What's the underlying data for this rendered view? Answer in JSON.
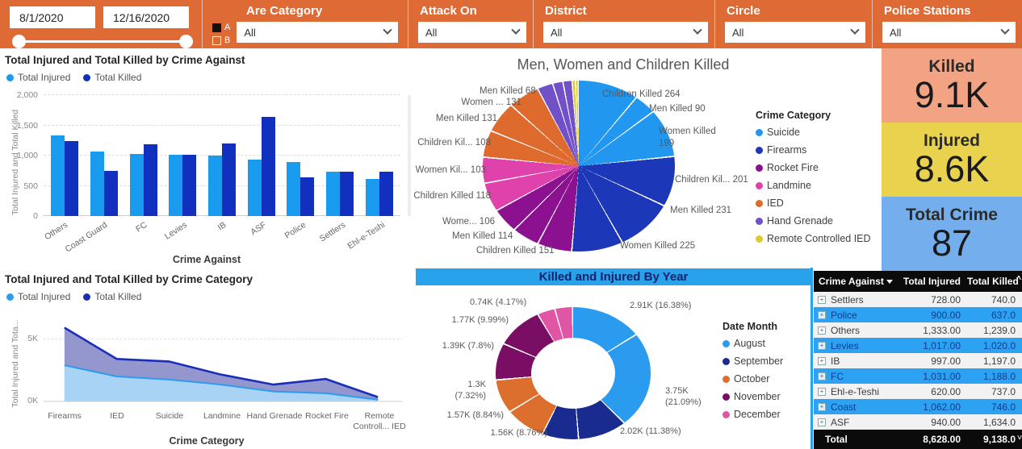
{
  "topbar": {
    "date_from": "8/1/2020",
    "date_to": "12/16/2020",
    "filters": [
      {
        "id": "are-category",
        "label": "Are Category",
        "value": "All",
        "checkboxes": [
          {
            "label": "A",
            "checked": true
          },
          {
            "label": "B",
            "checked": false
          }
        ]
      },
      {
        "id": "attack-on",
        "label": "Attack On",
        "value": "All"
      },
      {
        "id": "district",
        "label": "District",
        "value": "All"
      },
      {
        "id": "circle",
        "label": "Circle",
        "value": "All"
      },
      {
        "id": "police-stations",
        "label": "Police Stations",
        "value": "All"
      }
    ]
  },
  "kpi": {
    "killed": {
      "label": "Killed",
      "value": "9.1K",
      "bg": "#F2A383"
    },
    "injured": {
      "label": "Injured",
      "value": "8.6K",
      "bg": "#E9D24D"
    },
    "total_crime": {
      "label": "Total Crime",
      "value": "87",
      "bg": "#74AEEC"
    }
  },
  "table": {
    "headers": [
      "Crime Against",
      "Total Injured",
      "Total Killed"
    ],
    "rows": [
      [
        "Settlers",
        "728.00",
        "740.0"
      ],
      [
        "Police",
        "900.00",
        "637.0"
      ],
      [
        "Others",
        "1,333.00",
        "1,239.0"
      ],
      [
        "Levies",
        "1,017.00",
        "1,020.0"
      ],
      [
        "IB",
        "997.00",
        "1,197.0"
      ],
      [
        "FC",
        "1,031.00",
        "1,188.0"
      ],
      [
        "Ehl-e-Teshi",
        "620.00",
        "737.0"
      ],
      [
        "Coast",
        "1,062.00",
        "746.0"
      ],
      [
        "ASF",
        "940.00",
        "1,634.0"
      ]
    ],
    "footer": [
      "Total",
      "8,628.00",
      "9,138.0"
    ]
  },
  "chart_data": [
    {
      "type": "bar",
      "title": "Total Injured and Total Killed by Crime Against",
      "categories": [
        "Others",
        "Coast Guard",
        "FC",
        "Levies",
        "IB",
        "ASF",
        "Police",
        "Settlers",
        "Ehl-e-Teshi"
      ],
      "series": [
        {
          "name": "Total Injured",
          "color": "#199BF0",
          "values": [
            1333,
            1062,
            1031,
            1017,
            997,
            940,
            900,
            728,
            620
          ]
        },
        {
          "name": "Total Killed",
          "color": "#1230BE",
          "values": [
            1239,
            746,
            1188,
            1020,
            1197,
            1634,
            637,
            740,
            737
          ]
        }
      ],
      "xlabel": "Crime Against",
      "ylabel": "Total Injured and Total Killed",
      "ylim": [
        0,
        2000
      ],
      "yticks": [
        0,
        500,
        1000,
        1500,
        2000
      ],
      "grid": true,
      "legend_position": "top"
    },
    {
      "type": "area",
      "title": "Total Injured and Total Killed by Crime Category",
      "categories": [
        "Firearms",
        "IED",
        "Suicide",
        "Landmine",
        "Hand Grenade",
        "Rocket Fire",
        "Remote Controll... IED"
      ],
      "series": [
        {
          "name": "Total Injured",
          "color": "#2E9BF0",
          "fill": "#A9D3F5",
          "values": [
            2.9,
            2.0,
            1.75,
            1.35,
            0.8,
            0.65,
            0.15
          ]
        },
        {
          "name": "Total Killed",
          "color": "#1B2EB8",
          "fill": "#9496CE",
          "values": [
            5.9,
            3.4,
            3.2,
            2.15,
            1.35,
            1.8,
            0.35
          ]
        }
      ],
      "xlabel": "Crime Category",
      "ylabel": "Total Injured and Tota...",
      "unit": "K",
      "yticks": [
        "5K",
        "0K"
      ],
      "grid": true,
      "legend_position": "top"
    },
    {
      "type": "pie",
      "title": "Men, Women and Children Killed",
      "legend_title": "Crime Category",
      "legend": [
        {
          "label": "Suicide",
          "color": "#2297F0"
        },
        {
          "label": "Firearms",
          "color": "#1C37B8"
        },
        {
          "label": "Rocket Fire",
          "color": "#8C1190"
        },
        {
          "label": "Landmine",
          "color": "#E042AC"
        },
        {
          "label": "IED",
          "color": "#DE6A2D"
        },
        {
          "label": "Hand Grenade",
          "color": "#7150C8"
        },
        {
          "label": "Remote Controlled IED",
          "color": "#DCCA2F"
        }
      ],
      "colors": {
        "Suicide": "#2297F0",
        "Firearms": "#1C37B8",
        "Rocket Fire": "#8C1190",
        "Landmine": "#E042AC",
        "IED": "#DE6A2D",
        "Hand Grenade": "#7150C8",
        "Remote Controlled IED": "#DCCA2F"
      },
      "slices": [
        {
          "label": "Children Killed 264",
          "value": 264,
          "group": "Suicide"
        },
        {
          "label": "Men Killed 90",
          "value": 90,
          "group": "Suicide"
        },
        {
          "label": "Women Killed 199",
          "value": 199,
          "group": "Suicide"
        },
        {
          "label": "Children Kil... 201",
          "value": 201,
          "group": "Firearms"
        },
        {
          "label": "Men Killed 231",
          "value": 231,
          "group": "Firearms"
        },
        {
          "label": "Women Killed 225",
          "value": 225,
          "group": "Firearms"
        },
        {
          "label": "Children Killed 151",
          "value": 151,
          "group": "Rocket Fire"
        },
        {
          "label": "Men Killed 114",
          "value": 114,
          "group": "Rocket Fire"
        },
        {
          "label": "Wome... 106",
          "value": 106,
          "group": "Rocket Fire"
        },
        {
          "label": "Children Killed 118",
          "value": 118,
          "group": "Landmine"
        },
        {
          "label": "Women Kil... 103",
          "value": 103,
          "group": "Landmine"
        },
        {
          "label": "Children Kil... 108",
          "value": 108,
          "group": "IED"
        },
        {
          "label": "Men Killed 131",
          "value": 131,
          "group": "IED"
        },
        {
          "label": "Women ... 131",
          "value": 131,
          "group": "IED"
        },
        {
          "label": "Men Killed 68",
          "value": 68,
          "group": "Hand Grenade"
        },
        {
          "label": "",
          "value": 45,
          "group": "Hand Grenade"
        },
        {
          "label": "",
          "value": 40,
          "group": "Hand Grenade"
        },
        {
          "label": "",
          "value": 15,
          "group": "Remote Controlled IED"
        },
        {
          "label": "",
          "value": 12,
          "group": "Remote Controlled IED"
        }
      ]
    },
    {
      "type": "donut",
      "title": "Killed and Injured By Year",
      "legend_title": "Date Month",
      "legend": [
        {
          "label": "August",
          "color": "#2B9BF0"
        },
        {
          "label": "September",
          "color": "#1A2B8F"
        },
        {
          "label": "October",
          "color": "#DC6E2E"
        },
        {
          "label": "November",
          "color": "#7A0E64"
        },
        {
          "label": "December",
          "color": "#E155A5"
        }
      ],
      "colors": {
        "August": "#2B9BF0",
        "September": "#1A2B8F",
        "October": "#DC6E2E",
        "November": "#7A0E64",
        "December": "#E155A5"
      },
      "slices": [
        {
          "label": "2.91K (16.38%)",
          "value": "2.91K",
          "pct": 16.38,
          "month": "August"
        },
        {
          "label": "3.75K (21.09%)",
          "value": "3.75K",
          "pct": 21.09,
          "month": "August"
        },
        {
          "label": "2.02K (11.38%)",
          "value": "2.02K",
          "pct": 11.38,
          "month": "September"
        },
        {
          "label": "1.56K (8.76%)",
          "value": "1.56K",
          "pct": 8.76,
          "month": "September"
        },
        {
          "label": "1.57K (8.84%)",
          "value": "1.57K",
          "pct": 8.84,
          "month": "October"
        },
        {
          "label": "1.3K (7.32%)",
          "value": "1.3K",
          "pct": 7.32,
          "month": "October"
        },
        {
          "label": "1.39K (7.8%)",
          "value": "1.39K",
          "pct": 7.8,
          "month": "November"
        },
        {
          "label": "1.77K (9.99%)",
          "value": "1.77K",
          "pct": 9.99,
          "month": "November"
        },
        {
          "label": "0.74K (4.17%)",
          "value": "0.74K",
          "pct": 4.17,
          "month": "December"
        },
        {
          "label": "",
          "value": "",
          "pct": 4.27,
          "month": "December"
        }
      ]
    }
  ]
}
